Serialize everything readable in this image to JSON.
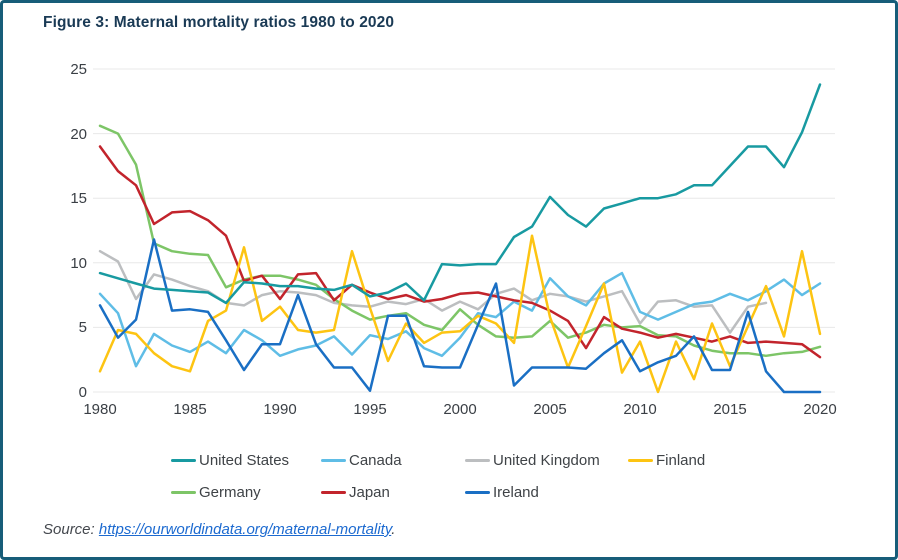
{
  "figure": {
    "title": "Figure 3: Maternal mortality ratios 1980 to 2020"
  },
  "source": {
    "prefix": "Source: ",
    "link_text": "https://ourworldindata.org/maternal-mortality",
    "suffix": "."
  },
  "colors": {
    "frame_border": "#175d79",
    "title_text": "#1a3a55",
    "gridline": "#e8e8e8",
    "tick_text": "#3a3f45",
    "link": "#1c6ad0"
  },
  "chart_data": {
    "type": "line",
    "title": "Figure 3: Maternal mortality ratios 1980 to 2020",
    "xlabel": "",
    "ylabel": "",
    "xlim": [
      1980,
      2020
    ],
    "ylim": [
      0,
      25
    ],
    "x_ticks": [
      1980,
      1985,
      1990,
      1995,
      2000,
      2005,
      2010,
      2015,
      2020
    ],
    "y_ticks": [
      0,
      5,
      10,
      15,
      20,
      25
    ],
    "grid": true,
    "legend_position": "bottom",
    "x_start": 1980,
    "x_step": 1,
    "series": [
      {
        "name": "United States",
        "color": "#189aa1",
        "values": [
          9.2,
          8.8,
          8.4,
          8.0,
          7.9,
          7.8,
          7.7,
          6.9,
          8.5,
          8.4,
          8.2,
          8.2,
          8.0,
          7.9,
          8.3,
          7.4,
          7.7,
          8.4,
          7.1,
          9.9,
          9.8,
          9.9,
          9.9,
          12.0,
          12.8,
          15.1,
          13.7,
          12.8,
          14.2,
          14.6,
          15.0,
          15.0,
          15.3,
          16.0,
          16.0,
          17.5,
          19.0,
          19.0,
          17.4,
          20.1,
          23.8
        ]
      },
      {
        "name": "Canada",
        "color": "#5fbde6",
        "values": [
          7.6,
          6.1,
          2.0,
          4.5,
          3.6,
          3.1,
          3.9,
          3.0,
          4.8,
          4.0,
          2.8,
          3.3,
          3.6,
          4.3,
          2.9,
          4.4,
          4.1,
          4.7,
          3.4,
          2.8,
          4.2,
          6.1,
          5.8,
          7.0,
          6.3,
          8.8,
          7.4,
          6.7,
          8.4,
          9.2,
          6.2,
          5.6,
          6.2,
          6.8,
          7.0,
          7.6,
          7.1,
          7.8,
          8.7,
          7.5,
          8.4
        ]
      },
      {
        "name": "United Kingdom",
        "color": "#bcbec0",
        "values": [
          10.9,
          10.1,
          7.2,
          9.1,
          8.7,
          8.2,
          7.8,
          6.9,
          6.7,
          7.5,
          7.8,
          7.7,
          7.5,
          6.9,
          6.7,
          6.6,
          7.0,
          6.8,
          7.2,
          6.3,
          7.0,
          6.4,
          7.6,
          8.0,
          7.1,
          7.6,
          7.4,
          7.0,
          7.4,
          7.8,
          5.3,
          7.0,
          7.1,
          6.6,
          6.7,
          4.6,
          6.6,
          6.9,
          null,
          null,
          null
        ]
      },
      {
        "name": "Finland",
        "color": "#fdc412",
        "values": [
          1.6,
          4.8,
          4.5,
          3.0,
          2.0,
          1.6,
          5.5,
          6.3,
          11.2,
          5.5,
          6.6,
          4.8,
          4.6,
          4.8,
          10.9,
          6.5,
          2.4,
          5.3,
          3.8,
          4.6,
          4.7,
          5.9,
          5.3,
          3.8,
          12.1,
          5.8,
          1.9,
          5.1,
          8.4,
          1.5,
          3.9,
          0.0,
          3.9,
          1.0,
          5.3,
          2.0,
          5.1,
          8.2,
          4.3,
          10.9,
          4.5
        ]
      },
      {
        "name": "Germany",
        "color": "#7dc567",
        "values": [
          20.6,
          20.0,
          17.6,
          11.5,
          10.9,
          10.7,
          10.6,
          8.1,
          8.7,
          9.0,
          9.0,
          8.7,
          8.3,
          7.2,
          6.3,
          5.6,
          5.9,
          6.1,
          5.2,
          4.8,
          6.4,
          5.2,
          4.3,
          4.2,
          4.3,
          5.5,
          4.2,
          4.6,
          5.2,
          5.0,
          5.1,
          4.4,
          4.3,
          3.6,
          3.2,
          3.0,
          3.0,
          2.8,
          3.0,
          3.1,
          3.5
        ]
      },
      {
        "name": "Japan",
        "color": "#c2242c",
        "values": [
          19.0,
          17.1,
          16.0,
          13.0,
          13.9,
          14.0,
          13.3,
          12.1,
          8.6,
          9.0,
          7.2,
          9.1,
          9.2,
          7.1,
          8.3,
          7.7,
          7.2,
          7.5,
          7.0,
          7.2,
          7.6,
          7.7,
          7.4,
          7.1,
          6.9,
          6.3,
          5.5,
          3.4,
          5.8,
          4.9,
          4.6,
          4.2,
          4.5,
          4.2,
          3.9,
          4.3,
          3.8,
          3.9,
          3.8,
          3.7,
          2.7
        ]
      },
      {
        "name": "Ireland",
        "color": "#1a6fc4",
        "values": [
          6.7,
          4.2,
          5.6,
          11.8,
          6.3,
          6.4,
          6.2,
          4.0,
          1.7,
          3.7,
          3.7,
          7.5,
          3.7,
          1.9,
          1.9,
          0.1,
          5.9,
          5.9,
          2.0,
          1.9,
          1.9,
          5.2,
          8.4,
          0.5,
          1.9,
          1.9,
          1.9,
          1.8,
          3.0,
          4.0,
          1.6,
          2.3,
          2.8,
          4.3,
          1.7,
          1.7,
          6.2,
          1.6,
          0.0,
          0.0,
          0.0
        ]
      }
    ]
  }
}
